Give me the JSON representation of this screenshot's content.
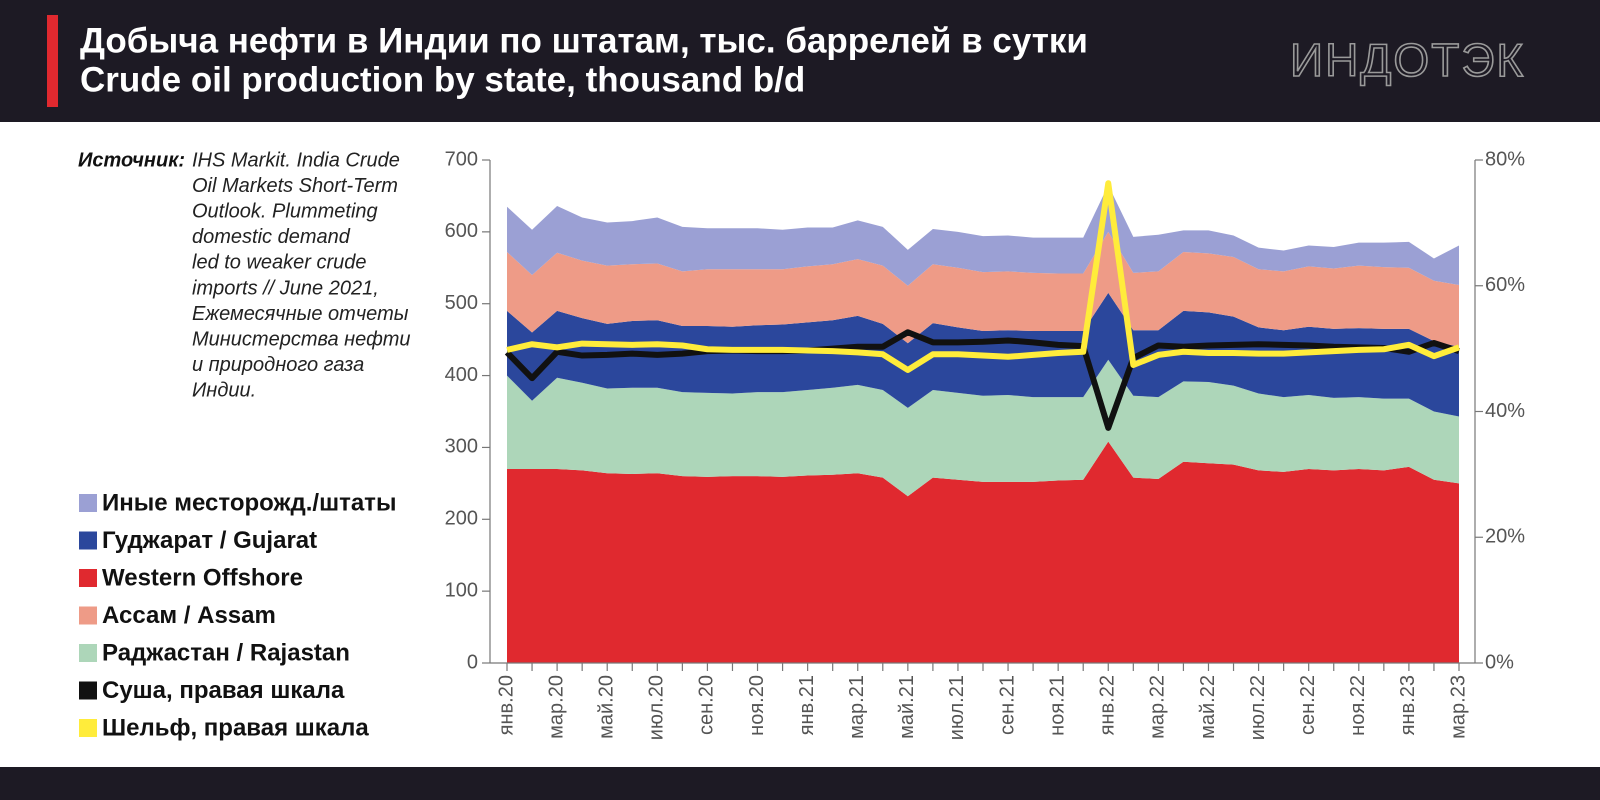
{
  "chart_data": {
    "type": "area",
    "stacked": true,
    "title": "Добыча нефти в Индии по штатам, тыс. баррелей в сутки",
    "subtitle": "Crude oil production by state, thousand b/d",
    "logo": "ИНДОТЭК",
    "source_label": "Источник:",
    "source_lines": [
      "IHS Markit. India Crude",
      "Oil Markets Short-Term",
      "Outlook. Plummeting",
      "domestic demand",
      "led to weaker crude",
      "imports // June 2021,",
      "Ежемесячные отчеты",
      "Министерства нефти",
      "и природного газа",
      "Индии."
    ],
    "categories": [
      "янв.20",
      null,
      "мар.20",
      null,
      "май.20",
      null,
      "июл.20",
      null,
      "сен.20",
      null,
      "ноя.20",
      null,
      "янв.21",
      null,
      "мар.21",
      null,
      "май.21",
      null,
      "июл.21",
      null,
      "сен.21",
      null,
      "ноя.21",
      null,
      "янв.22",
      null,
      "мар.22",
      null,
      "май.22",
      null,
      "июл.22",
      null,
      "сен.22",
      null,
      "ноя.22",
      null,
      "янв.23",
      null,
      "мар.23"
    ],
    "ylim": [
      0,
      700
    ],
    "yticks": [
      0,
      100,
      200,
      300,
      400,
      500,
      600,
      700
    ],
    "y2lim": [
      0,
      80
    ],
    "y2ticks": [
      {
        "value": 0,
        "label": "0%"
      },
      {
        "value": 20,
        "label": "20%"
      },
      {
        "value": 40,
        "label": "40%"
      },
      {
        "value": 60,
        "label": "60%"
      },
      {
        "value": 80,
        "label": "80%"
      }
    ],
    "grid": false,
    "legend": "left",
    "series": [
      {
        "name": "Иные месторожд./штаты",
        "color": "#9ba0d4",
        "values": [
          63,
          63,
          65,
          60,
          60,
          60,
          64,
          62,
          57,
          57,
          57,
          55,
          54,
          51,
          54,
          54,
          50,
          49,
          50,
          50,
          50,
          49,
          50,
          50,
          65,
          50,
          51,
          30,
          32,
          30,
          30,
          29,
          29,
          30,
          32,
          34,
          36,
          31,
          55
        ]
      },
      {
        "name": "Гуджарат / Gujarat",
        "color": "#2b479c",
        "values": [
          90,
          95,
          93,
          90,
          90,
          93,
          94,
          92,
          93,
          93,
          93,
          94,
          94,
          94,
          96,
          92,
          90,
          93,
          91,
          90,
          90,
          92,
          92,
          92,
          93,
          91,
          93,
          98,
          97,
          96,
          92,
          93,
          95,
          96,
          96,
          97,
          97,
          98,
          97
        ]
      },
      {
        "name": "Western Offshore",
        "color": "#e0292f",
        "values": [
          270,
          270,
          270,
          268,
          264,
          263,
          264,
          260,
          259,
          260,
          260,
          259,
          261,
          262,
          264,
          258,
          232,
          258,
          255,
          252,
          252,
          252,
          254,
          255,
          308,
          258,
          256,
          280,
          278,
          276,
          268,
          266,
          270,
          268,
          270,
          268,
          273,
          255,
          250
        ]
      },
      {
        "name": "Ассам / Assam",
        "color": "#ee9b87",
        "values": [
          82,
          80,
          81,
          80,
          81,
          79,
          79,
          76,
          79,
          80,
          78,
          77,
          78,
          78,
          79,
          81,
          80,
          82,
          83,
          82,
          82,
          81,
          80,
          80,
          85,
          80,
          82,
          82,
          82,
          83,
          81,
          82,
          84,
          84,
          87,
          86,
          85,
          84,
          86
        ]
      },
      {
        "name": "Раджастан / Rajastan",
        "color": "#add6b9",
        "values": [
          130,
          95,
          127,
          122,
          118,
          120,
          119,
          117,
          117,
          115,
          117,
          118,
          119,
          121,
          123,
          122,
          123,
          122,
          121,
          120,
          121,
          118,
          116,
          115,
          114,
          114,
          114,
          112,
          113,
          110,
          107,
          104,
          103,
          101,
          100,
          100,
          95,
          95,
          93
        ]
      },
      {
        "name": "Суша, правая шкала",
        "color": "#111111",
        "axis": "y2",
        "type": "line",
        "values": [
          49.4,
          45.3,
          49.5,
          48.9,
          49.0,
          49.2,
          49.0,
          49.2,
          49.6,
          49.7,
          49.6,
          49.6,
          49.7,
          50.0,
          50.3,
          50.3,
          52.6,
          51.0,
          51.0,
          51.1,
          51.3,
          51.0,
          50.6,
          50.4,
          37.4,
          48.5,
          50.5,
          50.3,
          50.5,
          50.6,
          50.7,
          50.6,
          50.5,
          50.3,
          50.2,
          50.1,
          49.5,
          50.9,
          49.6
        ]
      },
      {
        "name": "Шельф, правая шкала",
        "color": "#ffec3b",
        "axis": "y2",
        "type": "line",
        "values": [
          49.8,
          50.7,
          50.2,
          50.8,
          50.7,
          50.6,
          50.7,
          50.5,
          49.9,
          49.8,
          49.8,
          49.8,
          49.7,
          49.6,
          49.4,
          49.1,
          46.6,
          49.1,
          49.1,
          48.9,
          48.7,
          49.0,
          49.3,
          49.5,
          76.3,
          47.4,
          49.0,
          49.5,
          49.3,
          49.3,
          49.2,
          49.2,
          49.4,
          49.6,
          49.8,
          49.9,
          50.6,
          48.8,
          50.2
        ]
      }
    ]
  }
}
